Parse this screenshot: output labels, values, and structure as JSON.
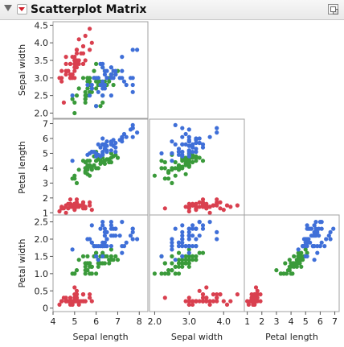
{
  "header": {
    "title": "Scatterplot Matrix",
    "menu_icon": "red-triangle-menu-icon",
    "disclosure_icon": "disclosure-triangle-icon",
    "selection_icon": "selection-mode-icon"
  },
  "colors": {
    "setosa": "#d9404f",
    "versicolor": "#3a9a3a",
    "virginica": "#3f6fd8",
    "frame": "#a0a0a0",
    "text": "#222222"
  },
  "chart_data": {
    "type": "scatter",
    "variables": [
      {
        "key": "sl",
        "label": "Sepal length",
        "range": [
          4.0,
          8.4
        ],
        "ticks": [
          "4",
          "5",
          "6",
          "7",
          "8"
        ]
      },
      {
        "key": "sw",
        "label": "Sepal width",
        "range": [
          1.85,
          4.6
        ],
        "ticks": [
          "2.0",
          "2.5",
          "3.0",
          "3.5",
          "4.0",
          "4.5"
        ],
        "x_ticks": [
          "2.0",
          "3.0",
          "4.0"
        ]
      },
      {
        "key": "pl",
        "label": "Petal length",
        "range": [
          0.8,
          7.3
        ],
        "ticks": [
          "1",
          "2",
          "3",
          "4",
          "5",
          "6",
          "7"
        ]
      },
      {
        "key": "pw",
        "label": "Petal width",
        "range": [
          -0.1,
          2.7
        ],
        "ticks": [
          "0",
          "0.5",
          "1.0",
          "1.5",
          "2.0",
          "2.5"
        ]
      }
    ],
    "panels": [
      {
        "row": "sw",
        "col": "sl"
      },
      {
        "row": "pl",
        "col": "sl"
      },
      {
        "row": "pl",
        "col": "sw"
      },
      {
        "row": "pw",
        "col": "sl"
      },
      {
        "row": "pw",
        "col": "sw"
      },
      {
        "row": "pw",
        "col": "pl"
      }
    ],
    "series": [
      {
        "color": "#d9404f",
        "points": [
          [
            5.1,
            3.5,
            1.4,
            0.2
          ],
          [
            4.9,
            3.0,
            1.4,
            0.2
          ],
          [
            4.7,
            3.2,
            1.3,
            0.2
          ],
          [
            4.6,
            3.1,
            1.5,
            0.2
          ],
          [
            5.0,
            3.6,
            1.4,
            0.2
          ],
          [
            5.4,
            3.9,
            1.7,
            0.4
          ],
          [
            4.6,
            3.4,
            1.4,
            0.3
          ],
          [
            5.0,
            3.4,
            1.5,
            0.2
          ],
          [
            4.4,
            2.9,
            1.4,
            0.2
          ],
          [
            4.9,
            3.1,
            1.5,
            0.1
          ],
          [
            5.4,
            3.7,
            1.5,
            0.2
          ],
          [
            4.8,
            3.4,
            1.6,
            0.2
          ],
          [
            4.8,
            3.0,
            1.4,
            0.1
          ],
          [
            4.3,
            3.0,
            1.1,
            0.1
          ],
          [
            5.8,
            4.0,
            1.2,
            0.2
          ],
          [
            5.7,
            4.4,
            1.5,
            0.4
          ],
          [
            5.4,
            3.9,
            1.3,
            0.4
          ],
          [
            5.1,
            3.5,
            1.4,
            0.3
          ],
          [
            5.7,
            3.8,
            1.7,
            0.3
          ],
          [
            5.1,
            3.8,
            1.5,
            0.3
          ],
          [
            5.4,
            3.4,
            1.7,
            0.2
          ],
          [
            5.1,
            3.7,
            1.5,
            0.4
          ],
          [
            4.6,
            3.6,
            1.0,
            0.2
          ],
          [
            5.1,
            3.3,
            1.7,
            0.5
          ],
          [
            4.8,
            3.4,
            1.9,
            0.2
          ],
          [
            5.0,
            3.0,
            1.6,
            0.2
          ],
          [
            5.0,
            3.4,
            1.6,
            0.4
          ],
          [
            5.2,
            3.5,
            1.5,
            0.2
          ],
          [
            5.2,
            3.4,
            1.4,
            0.2
          ],
          [
            4.7,
            3.2,
            1.6,
            0.2
          ],
          [
            4.8,
            3.1,
            1.6,
            0.2
          ],
          [
            5.4,
            3.4,
            1.5,
            0.4
          ],
          [
            5.2,
            4.1,
            1.5,
            0.1
          ],
          [
            5.5,
            4.2,
            1.4,
            0.2
          ],
          [
            4.9,
            3.1,
            1.5,
            0.2
          ],
          [
            5.0,
            3.2,
            1.2,
            0.2
          ],
          [
            5.5,
            3.5,
            1.3,
            0.2
          ],
          [
            4.9,
            3.6,
            1.4,
            0.1
          ],
          [
            4.4,
            3.0,
            1.3,
            0.2
          ],
          [
            5.1,
            3.4,
            1.5,
            0.2
          ],
          [
            5.0,
            3.5,
            1.3,
            0.3
          ],
          [
            4.5,
            2.3,
            1.3,
            0.3
          ],
          [
            4.4,
            3.2,
            1.3,
            0.2
          ],
          [
            5.0,
            3.5,
            1.6,
            0.6
          ],
          [
            5.1,
            3.8,
            1.9,
            0.4
          ],
          [
            4.8,
            3.0,
            1.4,
            0.3
          ],
          [
            5.1,
            3.8,
            1.6,
            0.2
          ],
          [
            4.6,
            3.2,
            1.4,
            0.2
          ],
          [
            5.3,
            3.7,
            1.5,
            0.2
          ],
          [
            5.0,
            3.3,
            1.4,
            0.2
          ]
        ]
      },
      {
        "color": "#3a9a3a",
        "points": [
          [
            7.0,
            3.2,
            4.7,
            1.4
          ],
          [
            6.4,
            3.2,
            4.5,
            1.5
          ],
          [
            6.9,
            3.1,
            4.9,
            1.5
          ],
          [
            5.5,
            2.3,
            4.0,
            1.3
          ],
          [
            6.5,
            2.8,
            4.6,
            1.5
          ],
          [
            5.7,
            2.8,
            4.5,
            1.3
          ],
          [
            6.3,
            3.3,
            4.7,
            1.6
          ],
          [
            4.9,
            2.4,
            3.3,
            1.0
          ],
          [
            6.6,
            2.9,
            4.6,
            1.3
          ],
          [
            5.2,
            2.7,
            3.9,
            1.4
          ],
          [
            5.0,
            2.0,
            3.5,
            1.0
          ],
          [
            5.9,
            3.0,
            4.2,
            1.5
          ],
          [
            6.0,
            2.2,
            4.0,
            1.0
          ],
          [
            6.1,
            2.9,
            4.7,
            1.4
          ],
          [
            5.6,
            2.9,
            3.6,
            1.3
          ],
          [
            6.7,
            3.1,
            4.4,
            1.4
          ],
          [
            5.6,
            3.0,
            4.5,
            1.5
          ],
          [
            5.8,
            2.7,
            4.1,
            1.0
          ],
          [
            6.2,
            2.2,
            4.5,
            1.5
          ],
          [
            5.6,
            2.5,
            3.9,
            1.1
          ],
          [
            5.9,
            3.2,
            4.8,
            1.8
          ],
          [
            6.1,
            2.8,
            4.0,
            1.3
          ],
          [
            6.3,
            2.5,
            4.9,
            1.5
          ],
          [
            6.1,
            2.8,
            4.7,
            1.2
          ],
          [
            6.4,
            2.9,
            4.3,
            1.3
          ],
          [
            6.6,
            3.0,
            4.4,
            1.4
          ],
          [
            6.8,
            2.8,
            4.8,
            1.4
          ],
          [
            6.7,
            3.0,
            5.0,
            1.7
          ],
          [
            6.0,
            2.9,
            4.5,
            1.5
          ],
          [
            5.7,
            2.6,
            3.5,
            1.0
          ],
          [
            5.5,
            2.4,
            3.8,
            1.1
          ],
          [
            5.5,
            2.4,
            3.7,
            1.0
          ],
          [
            5.8,
            2.7,
            3.9,
            1.2
          ],
          [
            6.0,
            2.7,
            5.1,
            1.6
          ],
          [
            5.4,
            3.0,
            4.5,
            1.5
          ],
          [
            6.0,
            3.4,
            4.5,
            1.6
          ],
          [
            6.7,
            3.1,
            4.7,
            1.5
          ],
          [
            6.3,
            2.3,
            4.4,
            1.3
          ],
          [
            5.6,
            3.0,
            4.1,
            1.3
          ],
          [
            5.5,
            2.5,
            4.0,
            1.3
          ],
          [
            5.5,
            2.6,
            4.4,
            1.2
          ],
          [
            6.1,
            3.0,
            4.6,
            1.4
          ],
          [
            5.8,
            2.6,
            4.0,
            1.2
          ],
          [
            5.0,
            2.3,
            3.3,
            1.0
          ],
          [
            5.6,
            2.7,
            4.2,
            1.3
          ],
          [
            5.7,
            3.0,
            4.2,
            1.2
          ],
          [
            5.7,
            2.9,
            4.2,
            1.3
          ],
          [
            6.2,
            2.9,
            4.3,
            1.3
          ],
          [
            5.1,
            2.5,
            3.0,
            1.1
          ],
          [
            5.7,
            2.8,
            4.1,
            1.3
          ]
        ]
      },
      {
        "color": "#3f6fd8",
        "points": [
          [
            6.3,
            3.3,
            6.0,
            2.5
          ],
          [
            5.8,
            2.7,
            5.1,
            1.9
          ],
          [
            7.1,
            3.0,
            5.9,
            2.1
          ],
          [
            6.3,
            2.9,
            5.6,
            1.8
          ],
          [
            6.5,
            3.0,
            5.8,
            2.2
          ],
          [
            7.6,
            3.0,
            6.6,
            2.1
          ],
          [
            4.9,
            2.5,
            4.5,
            1.7
          ],
          [
            7.3,
            2.9,
            6.3,
            1.8
          ],
          [
            6.7,
            2.5,
            5.8,
            1.8
          ],
          [
            7.2,
            3.6,
            6.1,
            2.5
          ],
          [
            6.5,
            3.2,
            5.1,
            2.0
          ],
          [
            6.4,
            2.7,
            5.3,
            1.9
          ],
          [
            6.8,
            3.0,
            5.5,
            2.1
          ],
          [
            5.7,
            2.5,
            5.0,
            2.0
          ],
          [
            5.8,
            2.8,
            5.1,
            2.4
          ],
          [
            6.4,
            3.2,
            5.3,
            2.3
          ],
          [
            6.5,
            3.0,
            5.5,
            1.8
          ],
          [
            7.7,
            3.8,
            6.7,
            2.2
          ],
          [
            7.7,
            2.6,
            6.9,
            2.3
          ],
          [
            6.0,
            2.2,
            5.0,
            1.5
          ],
          [
            6.9,
            3.2,
            5.7,
            2.3
          ],
          [
            5.6,
            2.8,
            4.9,
            2.0
          ],
          [
            7.7,
            2.8,
            6.7,
            2.0
          ],
          [
            6.3,
            2.7,
            4.9,
            1.8
          ],
          [
            6.7,
            3.3,
            5.7,
            2.1
          ],
          [
            7.2,
            3.2,
            6.0,
            1.8
          ],
          [
            6.2,
            2.8,
            4.8,
            1.8
          ],
          [
            6.1,
            3.0,
            4.9,
            1.8
          ],
          [
            6.4,
            2.8,
            5.6,
            2.1
          ],
          [
            7.2,
            3.0,
            5.8,
            1.6
          ],
          [
            7.4,
            2.8,
            6.1,
            1.9
          ],
          [
            7.9,
            3.8,
            6.4,
            2.0
          ],
          [
            6.4,
            2.8,
            5.6,
            2.2
          ],
          [
            6.3,
            2.8,
            5.1,
            1.5
          ],
          [
            6.1,
            2.6,
            5.6,
            1.4
          ],
          [
            7.7,
            3.0,
            6.1,
            2.3
          ],
          [
            6.3,
            3.4,
            5.6,
            2.4
          ],
          [
            6.4,
            3.1,
            5.5,
            1.8
          ],
          [
            6.0,
            3.0,
            4.8,
            1.8
          ],
          [
            6.9,
            3.1,
            5.4,
            2.1
          ],
          [
            6.7,
            3.1,
            5.6,
            2.4
          ],
          [
            6.9,
            3.1,
            5.1,
            2.3
          ],
          [
            5.8,
            2.7,
            5.1,
            1.9
          ],
          [
            6.8,
            3.2,
            5.9,
            2.3
          ],
          [
            6.7,
            3.3,
            5.7,
            2.5
          ],
          [
            6.7,
            3.0,
            5.2,
            2.3
          ],
          [
            6.3,
            2.5,
            5.0,
            1.9
          ],
          [
            6.5,
            3.0,
            5.2,
            2.0
          ],
          [
            6.2,
            3.4,
            5.4,
            2.3
          ],
          [
            5.9,
            3.0,
            5.1,
            1.8
          ]
        ]
      }
    ]
  }
}
